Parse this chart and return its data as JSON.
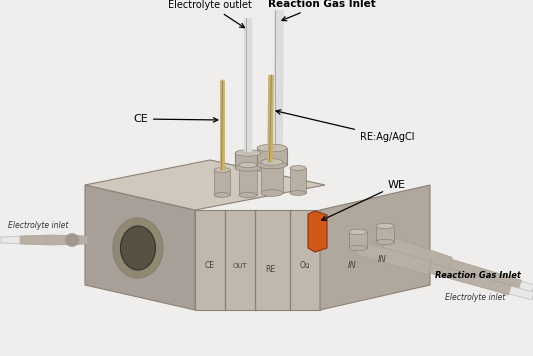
{
  "bg_color": "#f0eeec",
  "box_color": "#c0b8ac",
  "box_dark": "#a8a098",
  "box_darker": "#8a8278",
  "box_top": "#d0c8bc",
  "box_right": "#b0a89c",
  "pipe_color": "#b8b0a4",
  "pipe_dark": "#a0988c",
  "pipe_connector": "#b0a89c",
  "electrode_white": "#dcdcdc",
  "electrode_tan": "#c8b070",
  "electrode_orange": "#d05818",
  "tube_white": "#e8e8e6",
  "stub_top": "#c8c0b4",
  "stub_side": "#b8b0a4",
  "labels": {
    "electrolyte_outlet": "Electrolyte outlet",
    "reaction_gas_inlet_top": "Reaction Gas Inlet",
    "re_agagcl": "RE:Ag/AgCl",
    "ce": "CE",
    "we": "WE",
    "electrolyte_inlet_left": "Electrolyte inlet",
    "reaction_gas_inlet_bottom": "Reaction Gas Inlet",
    "electrolyte_inlet_bottom": "Electrolyte inlet",
    "ce_label": "CE",
    "out_label": "OUT",
    "re_label": "RE",
    "ou_label": "Ou",
    "in1_label": "IN",
    "in2_label": "IN"
  },
  "figsize": [
    5.33,
    3.56
  ],
  "dpi": 100
}
